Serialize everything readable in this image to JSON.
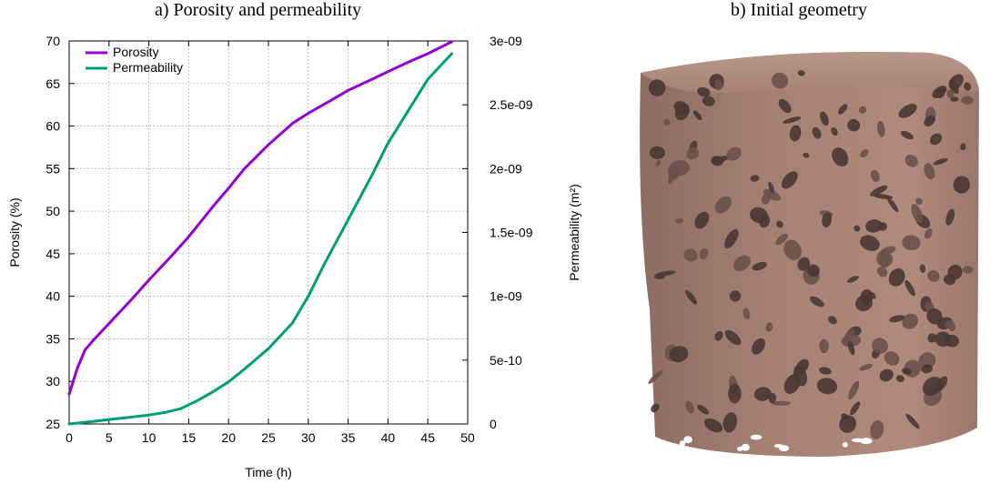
{
  "panels": {
    "a_title": "a) Porosity and permeability",
    "b_title": "b) Initial geometry"
  },
  "chart_data": {
    "type": "line",
    "xlabel": "Time (h)",
    "ylabel": "Porosity (%)",
    "y2label": "Permeability (m²)",
    "xlim": [
      0,
      50
    ],
    "ylim": [
      25,
      70
    ],
    "y2lim": [
      0,
      3e-09
    ],
    "xticks": [
      "0",
      "5",
      "10",
      "15",
      "20",
      "25",
      "30",
      "35",
      "40",
      "45",
      "50"
    ],
    "yticks": [
      "25",
      "30",
      "35",
      "40",
      "45",
      "50",
      "55",
      "60",
      "65",
      "70"
    ],
    "y2ticks": [
      "0",
      "5e-10",
      "1e-09",
      "1.5e-09",
      "2e-09",
      "2.5e-09",
      "3e-09"
    ],
    "grid": true,
    "legend_position": "top-left",
    "series": [
      {
        "name": "Porosity",
        "axis": "left",
        "color": "#9400d3",
        "x": [
          0,
          1,
          2,
          3,
          5,
          8,
          10,
          13,
          15,
          18,
          20,
          22,
          25,
          28,
          30,
          33,
          35,
          38,
          40,
          43,
          45,
          48
        ],
        "y": [
          28.5,
          31.5,
          33.7,
          34.8,
          36.8,
          39.8,
          41.9,
          44.9,
          47.0,
          50.5,
          52.7,
          55.0,
          57.8,
          60.3,
          61.5,
          63.1,
          64.2,
          65.5,
          66.4,
          67.7,
          68.5,
          69.9
        ]
      },
      {
        "name": "Permeability",
        "axis": "right",
        "color": "#009e73",
        "x": [
          0,
          3,
          5,
          8,
          10,
          12,
          14,
          16,
          18,
          20,
          22,
          25,
          28,
          30,
          32,
          35,
          38,
          40,
          43,
          45,
          48
        ],
        "y": [
          0,
          2e-11,
          3.5e-11,
          5.5e-11,
          7e-11,
          9e-11,
          1.2e-10,
          1.8e-10,
          2.5e-10,
          3.3e-10,
          4.3e-10,
          5.9e-10,
          7.9e-10,
          1e-09,
          1.25e-09,
          1.6e-09,
          1.95e-09,
          2.2e-09,
          2.5e-09,
          2.7e-09,
          2.9e-09
        ]
      }
    ]
  },
  "image": {
    "depicts": "porous-rock-sample",
    "colors": {
      "matrix": "#a37f72",
      "pore": "#4a3733"
    }
  }
}
